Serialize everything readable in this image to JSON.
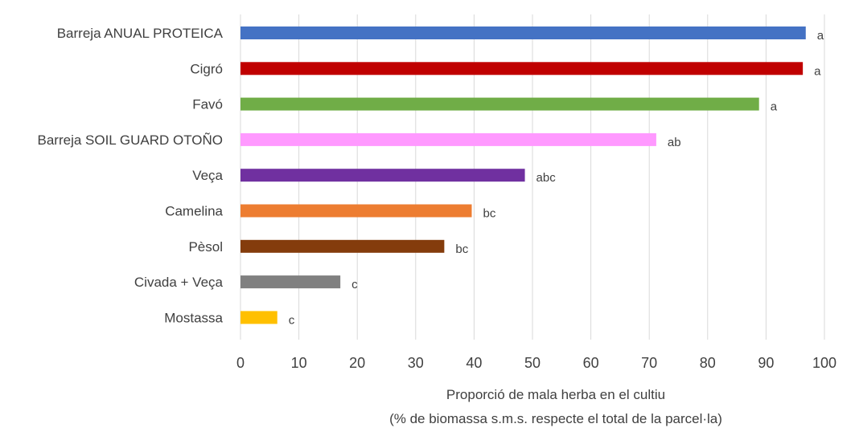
{
  "chart_data": {
    "type": "bar",
    "orientation": "horizontal",
    "categories": [
      "Barreja ANUAL PROTEICA",
      "Cigró",
      "Favó",
      "Barreja SOIL GUARD OTOÑO",
      "Veça",
      "Camelina",
      "Pèsol",
      "Civada +  Veça",
      "Mostassa"
    ],
    "values": [
      96.8,
      96.3,
      88.8,
      71.2,
      48.7,
      39.6,
      34.9,
      17.1,
      6.3
    ],
    "significance": [
      "a",
      "a",
      "a",
      "ab",
      "abc",
      "bc",
      "bc",
      "c",
      "c"
    ],
    "colors": [
      "#4472C4",
      "#C00000",
      "#70AD47",
      "#FF99FF",
      "#7030A0",
      "#ED7D31",
      "#843C0C",
      "#808080",
      "#FFC000"
    ],
    "xlabel_line1": "Proporció de mala herba en el cultiu",
    "xlabel_line2": "(% de biomassa s.m.s. respecte el total de la parcel·la)",
    "xlim": [
      0,
      100
    ],
    "xticks": [
      0,
      10,
      20,
      30,
      40,
      50,
      60,
      70,
      80,
      90,
      100
    ],
    "grid": true
  }
}
